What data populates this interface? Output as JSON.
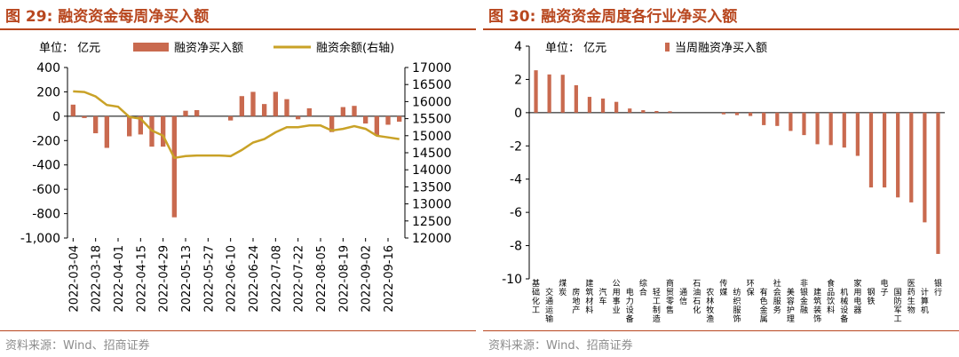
{
  "left": {
    "title": "图 29:  融资资金每周净买入额",
    "source": "资料来源：Wind、招商证券",
    "chart_data": {
      "type": "bar+line",
      "unit_label": "单位： 亿元",
      "legend": {
        "bar": "融资净买入额",
        "line": "融资余额(右轴)"
      },
      "left_axis": {
        "min": -1000,
        "max": 400,
        "ticks": [
          400,
          200,
          0,
          -200,
          -400,
          -600,
          -800,
          -1000
        ],
        "tick_labels": [
          "400",
          "200",
          "0",
          "-200",
          "-400",
          "-600",
          "-800",
          "-1,000"
        ]
      },
      "right_axis": {
        "min": 12000,
        "max": 17000,
        "ticks": [
          17000,
          16500,
          16000,
          15500,
          15000,
          14500,
          14000,
          13500,
          13000,
          12500,
          12000
        ],
        "tick_labels": [
          "17000",
          "16500",
          "16000",
          "15500",
          "15000",
          "14500",
          "14000",
          "13500",
          "13000",
          "12500",
          "12000"
        ]
      },
      "x_tick_labels": [
        "2022-03-04",
        "2022-03-18",
        "2022-04-01",
        "2022-04-15",
        "2022-04-29",
        "2022-05-13",
        "2022-05-27",
        "2022-06-10",
        "2022-06-24",
        "2022-07-08",
        "2022-07-22",
        "2022-08-05",
        "2022-08-19",
        "2022-09-02",
        "2022-09-16"
      ],
      "bar_values": [
        95,
        -15,
        -140,
        -260,
        0,
        -165,
        -150,
        -250,
        -250,
        -830,
        45,
        50,
        0,
        0,
        -35,
        165,
        200,
        100,
        200,
        140,
        -25,
        65,
        0,
        -130,
        75,
        85,
        -60,
        -160,
        -70,
        -45
      ],
      "line_values": [
        16300,
        16280,
        16150,
        15900,
        15850,
        15550,
        15500,
        15150,
        15000,
        14350,
        14400,
        14420,
        14420,
        14420,
        14400,
        14580,
        14800,
        14900,
        15100,
        15250,
        15250,
        15300,
        15300,
        15150,
        15200,
        15280,
        15200,
        15000,
        14950,
        14900
      ]
    }
  },
  "right": {
    "title": "图 30:  融资资金周度各行业净买入额",
    "source": "资料来源：Wind、招商证券",
    "chart_data": {
      "type": "bar",
      "unit_label": "单位： 亿元",
      "legend": "当周融资净买入额",
      "y_axis": {
        "min": -10,
        "max": 4,
        "ticks": [
          4,
          2,
          0,
          -2,
          -4,
          -6,
          -8,
          -10
        ]
      },
      "categories": [
        "基础化工",
        "交通运输",
        "煤炭",
        "房地产",
        "建筑材料",
        "汽车",
        "公用事业",
        "电力设备",
        "综合",
        "轻工制造",
        "商贸零售",
        "通信",
        "石油石化",
        "农林牧渔",
        "传媒",
        "纺织服饰",
        "环保",
        "有色金属",
        "社会服务",
        "美容护理",
        "非银金融",
        "建筑装饰",
        "食品饮料",
        "机械设备",
        "家用电器",
        "钢铁",
        "电子",
        "国防军工",
        "医药生物",
        "计算机",
        "银行"
      ],
      "values": [
        2.55,
        2.3,
        2.28,
        1.65,
        0.95,
        0.85,
        0.65,
        0.25,
        0.15,
        0.1,
        0.08,
        0.0,
        0.0,
        0.0,
        -0.1,
        -0.15,
        -0.2,
        -0.75,
        -0.8,
        -1.1,
        -1.35,
        -1.9,
        -1.95,
        -2.1,
        -2.6,
        -4.5,
        -4.5,
        -5.1,
        -5.4,
        -6.6,
        -8.5
      ]
    }
  }
}
